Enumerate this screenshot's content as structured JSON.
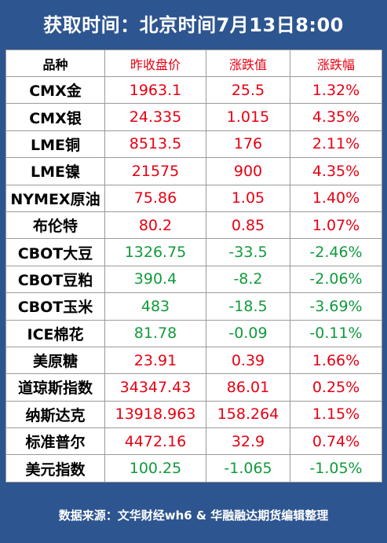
{
  "title": "获取时间：北京时间7月13日8:00",
  "headers": [
    "品种",
    "昨收盘价",
    "涨跌值",
    "涨跌幅"
  ],
  "rows": [
    {
      "name": "CMX金",
      "close": "1963.1",
      "change": "25.5",
      "pct": "1.32%",
      "dir": "up"
    },
    {
      "name": "CMX银",
      "close": "24.335",
      "change": "1.015",
      "pct": "4.35%",
      "dir": "up"
    },
    {
      "name": "LME铜",
      "close": "8513.5",
      "change": "176",
      "pct": "2.11%",
      "dir": "up"
    },
    {
      "name": "LME镍",
      "close": "21575",
      "change": "900",
      "pct": "4.35%",
      "dir": "up"
    },
    {
      "name": "NYMEX原油",
      "close": "75.86",
      "change": "1.05",
      "pct": "1.40%",
      "dir": "up"
    },
    {
      "name": "布伦特",
      "close": "80.2",
      "change": "0.85",
      "pct": "1.07%",
      "dir": "up"
    },
    {
      "name": "CBOT大豆",
      "close": "1326.75",
      "change": "-33.5",
      "pct": "-2.46%",
      "dir": "down"
    },
    {
      "name": "CBOT豆粕",
      "close": "390.4",
      "change": "-8.2",
      "pct": "-2.06%",
      "dir": "down"
    },
    {
      "name": "CBOT玉米",
      "close": "483",
      "change": "-18.5",
      "pct": "-3.69%",
      "dir": "down"
    },
    {
      "name": "ICE棉花",
      "close": "81.78",
      "change": "-0.09",
      "pct": "-0.11%",
      "dir": "down"
    },
    {
      "name": "美原糖",
      "close": "23.91",
      "change": "0.39",
      "pct": "1.66%",
      "dir": "up"
    },
    {
      "name": "道琼斯指数",
      "close": "34347.43",
      "change": "86.01",
      "pct": "0.25%",
      "dir": "up"
    },
    {
      "name": "纳斯达克",
      "close": "13918.963",
      "change": "158.264",
      "pct": "1.15%",
      "dir": "up"
    },
    {
      "name": "标准普尔",
      "close": "4472.16",
      "change": "32.9",
      "pct": "0.74%",
      "dir": "up"
    },
    {
      "name": "美元指数",
      "close": "100.25",
      "change": "-1.065",
      "pct": "-1.05%",
      "dir": "down"
    }
  ],
  "footer": "数据来源：文华财经wh6 & 华融融达期货编辑整理",
  "colors": {
    "up": "#e60012",
    "down": "#119a3c",
    "frame": "#2d5590"
  }
}
